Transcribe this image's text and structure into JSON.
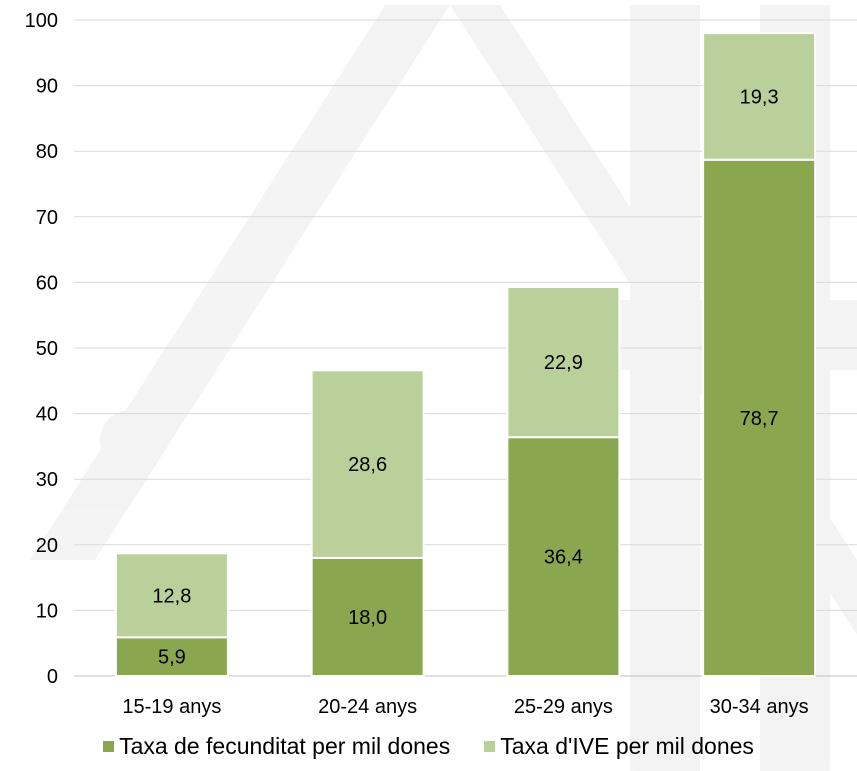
{
  "chart_data": {
    "type": "bar",
    "stacked": true,
    "categories": [
      "15-19 anys",
      "20-24 anys",
      "25-29 anys",
      "30-34 anys"
    ],
    "series": [
      {
        "name": "Taxa de fecunditat per mil dones",
        "values": [
          5.9,
          18.0,
          36.4,
          78.7
        ],
        "labels": [
          "5,9",
          "18,0",
          "36,4",
          "78,7"
        ],
        "color": "#8aa64f"
      },
      {
        "name": "Taxa d'IVE per mil dones",
        "values": [
          12.8,
          28.6,
          22.9,
          19.3
        ],
        "labels": [
          "12,8",
          "28,6",
          "22,9",
          "19,3"
        ],
        "color": "#b9d09a"
      }
    ],
    "ylim": [
      0,
      100
    ],
    "yticks": [
      "0",
      "10",
      "20",
      "30",
      "40",
      "50",
      "60",
      "70",
      "80",
      "90",
      "100"
    ],
    "grid": true,
    "legend_position": "bottom",
    "title": "",
    "xlabel": "",
    "ylabel": ""
  }
}
